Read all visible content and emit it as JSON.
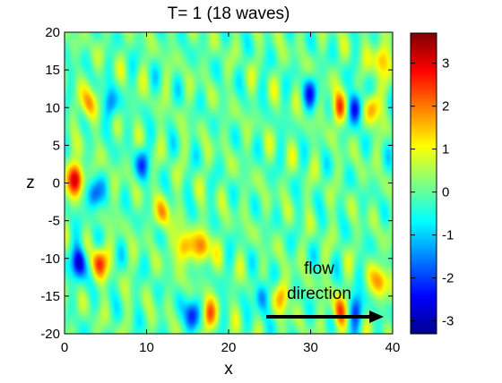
{
  "chart_data": {
    "type": "heatmap",
    "title": "T= 1   (18 waves)",
    "xlabel": "x",
    "ylabel": "z",
    "xlim": [
      0,
      40
    ],
    "ylim": [
      -20,
      20
    ],
    "xticks": [
      0,
      10,
      20,
      30,
      40
    ],
    "yticks": [
      -20,
      -15,
      -10,
      -5,
      0,
      5,
      10,
      15,
      20
    ],
    "colorbar": {
      "range": [
        -3.3,
        3.7
      ],
      "ticks": [
        -3,
        -2,
        -1,
        0,
        1,
        2,
        3
      ],
      "colormap": "jet"
    },
    "field_description": "streamwise-modulated wave packets; blobs aligned in bands",
    "blobs": [
      {
        "x": 1.5,
        "z": 0.5,
        "amp": 3.5
      },
      {
        "x": 3.5,
        "z": -1.5,
        "amp": -2.2
      },
      {
        "x": 1.8,
        "z": -10.5,
        "amp": -3.0
      },
      {
        "x": 4.2,
        "z": -10.5,
        "amp": 2.6
      },
      {
        "x": 3.0,
        "z": 10.5,
        "amp": 1.8
      },
      {
        "x": 5.5,
        "z": 10.5,
        "amp": -1.6
      },
      {
        "x": 14.5,
        "z": -8.5,
        "amp": 2.4
      },
      {
        "x": 17.0,
        "z": -8.5,
        "amp": 2.2
      },
      {
        "x": 15.5,
        "z": -17.5,
        "amp": -2.4
      },
      {
        "x": 17.5,
        "z": -17.5,
        "amp": 2.0
      },
      {
        "x": 35.5,
        "z": 10.0,
        "amp": -2.6
      },
      {
        "x": 33.5,
        "z": 10.0,
        "amp": 2.3
      },
      {
        "x": 37.5,
        "z": 10.0,
        "amp": 2.0
      },
      {
        "x": 38.5,
        "z": 16.5,
        "amp": 2.0
      },
      {
        "x": 33.5,
        "z": -17.0,
        "amp": 2.2
      },
      {
        "x": 35.5,
        "z": -17.0,
        "amp": -2.0
      },
      {
        "x": 38.5,
        "z": -13.0,
        "amp": 2.0
      },
      {
        "x": 30.0,
        "z": 12.0,
        "amp": -1.8
      },
      {
        "x": 9.5,
        "z": 2.5,
        "amp": -1.6
      },
      {
        "x": 12.0,
        "z": -4.0,
        "amp": 1.6
      },
      {
        "x": 24.0,
        "z": -15.0,
        "amp": -1.6
      },
      {
        "x": 26.5,
        "z": -15.0,
        "amp": 1.6
      }
    ]
  },
  "annotation": {
    "line1": "flow",
    "line2": "direction"
  }
}
